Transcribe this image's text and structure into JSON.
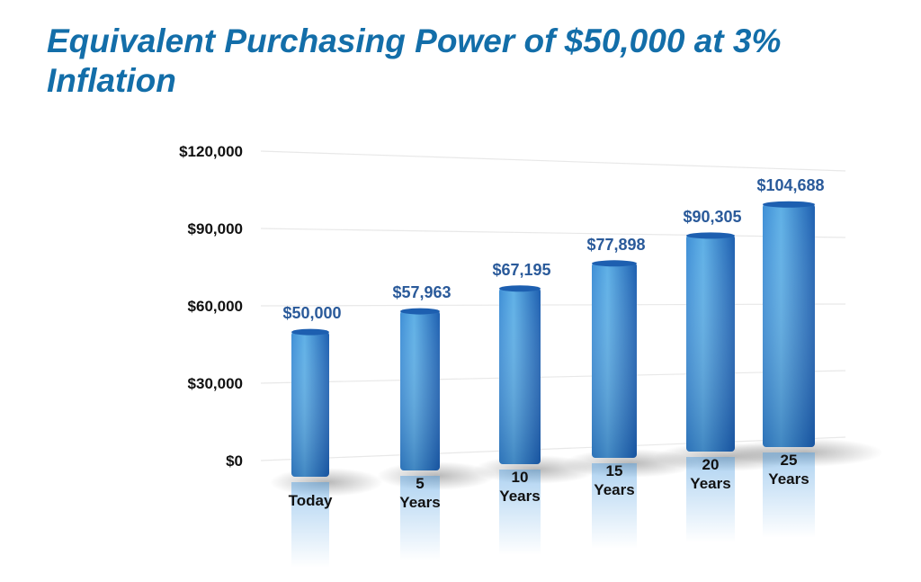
{
  "title": "Equivalent Purchasing Power of $50,000 at 3% Inflation",
  "colors": {
    "title": "#136ea9",
    "bar_light": "#5fb0e6",
    "bar_dark": "#1d5fb0",
    "data_label": "#2a5a9a",
    "grid": "#e8e8e8"
  },
  "chart_data": {
    "type": "bar",
    "title": "",
    "xlabel": "",
    "ylabel": "",
    "ylim": [
      0,
      120000
    ],
    "yticks": [
      0,
      30000,
      60000,
      90000,
      120000
    ],
    "ytick_labels": [
      "$0",
      "$30,000",
      "$60,000",
      "$90,000",
      "$120,000"
    ],
    "grid": true,
    "categories": [
      [
        "Today"
      ],
      [
        "5",
        "Years"
      ],
      [
        "10",
        "Years"
      ],
      [
        "15",
        "Years"
      ],
      [
        "20",
        "Years"
      ],
      [
        "25",
        "Years"
      ]
    ],
    "values": [
      50000,
      57963,
      67195,
      77898,
      90305,
      104688
    ],
    "value_labels": [
      "$50,000",
      "$57,963",
      "$67,195",
      "$77,898",
      "$90,305",
      "$104,688"
    ]
  }
}
